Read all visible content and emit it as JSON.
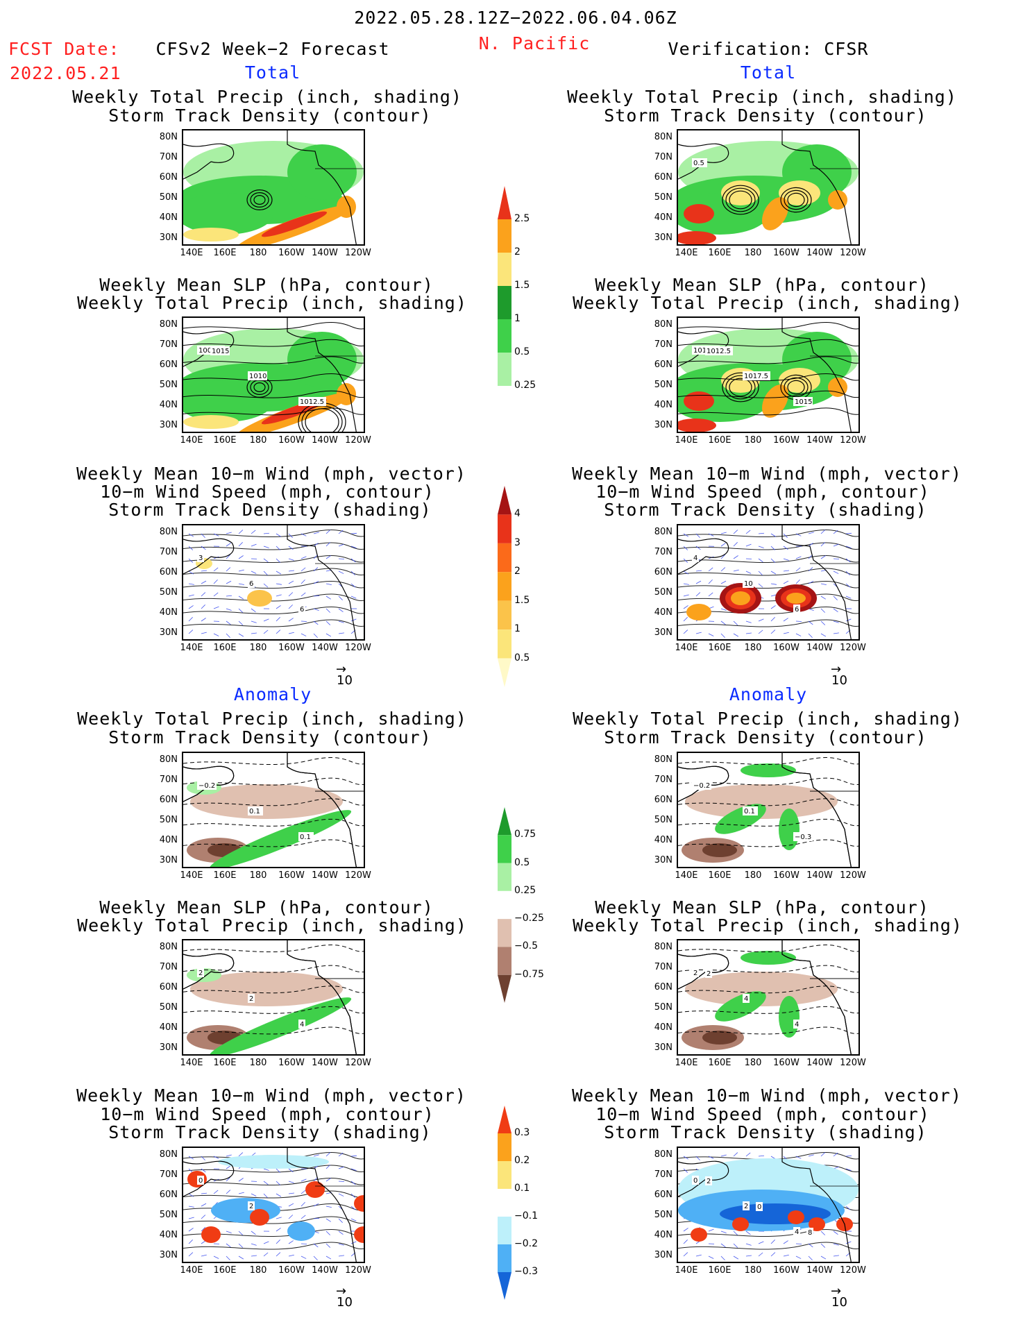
{
  "header": {
    "date_range": "2022.05.28.12Z−2022.06.04.06Z",
    "region": "N. Pacific",
    "fcst_label": "FCST Date:",
    "fcst_date": "2022.05.21",
    "left_title": "CFSv2 Week−2 Forecast",
    "right_title": "Verification: CFSR"
  },
  "sections": {
    "total": "Total",
    "anomaly": "Anomaly"
  },
  "titles": {
    "precip_storm": [
      "Weekly Total Precip (inch, shading)",
      "Storm Track Density (contour)"
    ],
    "slp_precip": [
      "Weekly Mean SLP (hPa, contour)",
      "Weekly Total Precip (inch, shading)"
    ],
    "wind": [
      "Weekly Mean 10−m Wind (mph, vector)",
      "10−m Wind Speed (mph, contour)",
      "Storm Track Density (shading)"
    ]
  },
  "axes": {
    "lat_labels": [
      "80N",
      "70N",
      "60N",
      "50N",
      "40N",
      "30N"
    ],
    "lon_labels": [
      "140E",
      "160E",
      "180",
      "160W",
      "140W",
      "120W"
    ]
  },
  "vector_ref": "10",
  "contour_labels": {
    "fcst_slp": [
      "1007.5",
      "1010",
      "1012.5",
      "1015"
    ],
    "verif_slp": [
      "1017.5",
      "1017.5",
      "1015",
      "1012.5"
    ],
    "verif_precip": [
      "0.5"
    ],
    "fcst_wind": [
      "3",
      "6",
      "6"
    ],
    "verif_wind": [
      "4",
      "10",
      "6"
    ],
    "fcst_anom_precip": [
      "−0.2",
      "0.1",
      "0.1"
    ],
    "verif_anom_precip": [
      "−0.2",
      "0.1",
      "−0.3"
    ],
    "fcst_anom_slp": [
      "2",
      "2",
      "4"
    ],
    "verif_anom_slp": [
      "2",
      "4",
      "4",
      "2"
    ],
    "fcst_anom_wind": [
      "0",
      "2"
    ],
    "verif_anom_wind": [
      "0",
      "2",
      "4",
      "2",
      "0",
      "8"
    ]
  },
  "colorbars": {
    "total_precip": {
      "labels": [
        "2.5",
        "2",
        "1.5",
        "1",
        "0.5",
        "0.25"
      ],
      "colors": [
        "#e8331a",
        "#fba21c",
        "#fbe57a",
        "#1e9b2c",
        "#3fd04a",
        "#a9f0a4"
      ]
    },
    "total_storm": {
      "labels": [
        "4",
        "3",
        "2",
        "1.5",
        "1",
        "0.5"
      ],
      "colors": [
        "#a51414",
        "#e8331a",
        "#fb6a1a",
        "#fba21c",
        "#fbc34a",
        "#fbe57a",
        "#fff9c8"
      ]
    },
    "anom_precip": {
      "labels": [
        "0.75",
        "0.5",
        "0.25",
        "−0.25",
        "−0.5",
        "−0.75"
      ],
      "colors": [
        "#1e9b2c",
        "#3fd04a",
        "#a9f0a4",
        "#ffffff",
        "#e0c0b0",
        "#b08070",
        "#6e4030"
      ]
    },
    "anom_storm": {
      "labels": [
        "0.3",
        "0.2",
        "0.1",
        "−0.1",
        "−0.2",
        "−0.3"
      ],
      "colors": [
        "#f03c14",
        "#fba21c",
        "#fbe57a",
        "#ffffff",
        "#bdf0fa",
        "#4fb0f5",
        "#1565d8"
      ]
    }
  }
}
